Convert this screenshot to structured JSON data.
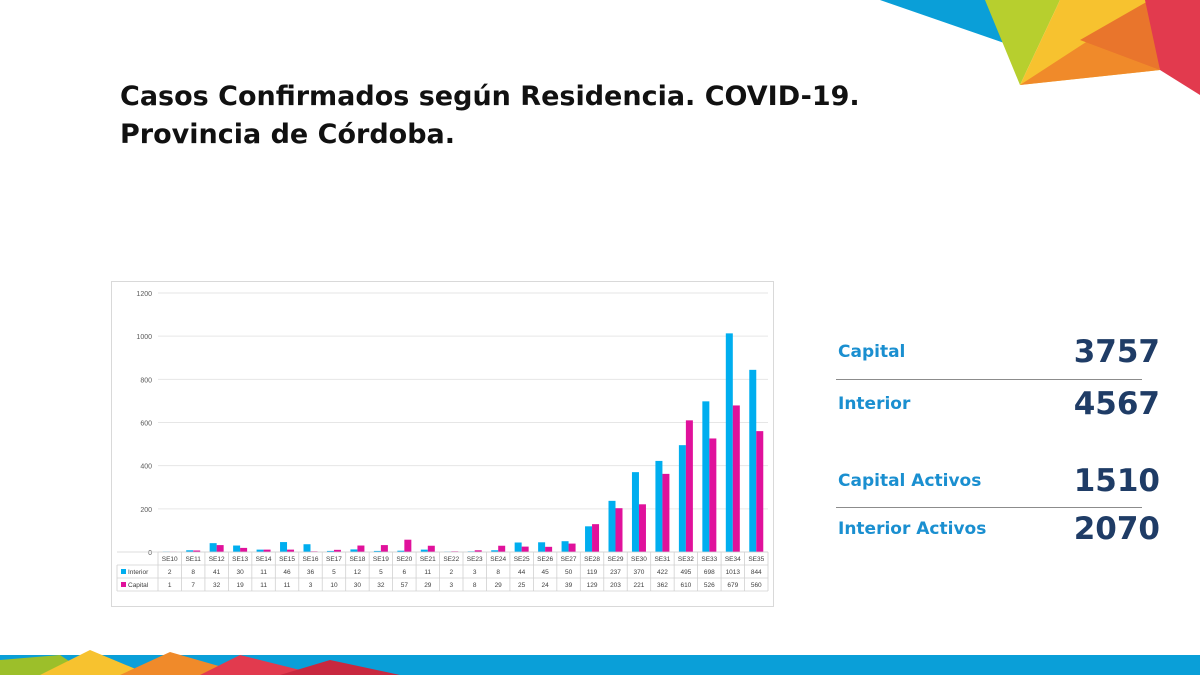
{
  "slide": {
    "title_line1": "Casos Confirmados según Residencia. COVID-19.",
    "title_line2": "Provincia de Córdoba."
  },
  "stats": [
    {
      "label": "Capital",
      "value": "3757"
    },
    {
      "label": "Interior",
      "value": "4567"
    },
    {
      "label": "Capital Activos",
      "value": "1510"
    },
    {
      "label": "Interior Activos",
      "value": "2070"
    }
  ],
  "colors": {
    "interior": "#00AEEF",
    "capital": "#E0119B",
    "stat_label": "#1A8FD0",
    "stat_value": "#1F3C66",
    "deco_blue": "#0A9FD8",
    "deco_orange": "#F39A2A",
    "deco_red": "#E23A4E",
    "deco_green": "#B7CF2E",
    "deco_yellow": "#F7C22F"
  },
  "chart_data": {
    "type": "bar",
    "categories": [
      "SE10",
      "SE11",
      "SE12",
      "SE13",
      "SE14",
      "SE15",
      "SE16",
      "SE17",
      "SE18",
      "SE19",
      "SE20",
      "SE21",
      "SE22",
      "SE23",
      "SE24",
      "SE25",
      "SE26",
      "SE27",
      "SE28",
      "SE29",
      "SE30",
      "SE31",
      "SE32",
      "SE33",
      "SE34",
      "SE35"
    ],
    "series": [
      {
        "name": "Interior",
        "values": [
          2,
          8,
          41,
          30,
          11,
          46,
          36,
          5,
          12,
          5,
          6,
          11,
          2,
          3,
          8,
          44,
          45,
          50,
          119,
          237,
          370,
          422,
          495,
          698,
          1013,
          844
        ]
      },
      {
        "name": "Capital",
        "values": [
          1,
          7,
          32,
          19,
          11,
          11,
          3,
          10,
          30,
          32,
          57,
          29,
          3,
          8,
          29,
          25,
          24,
          39,
          129,
          203,
          221,
          362,
          610,
          526,
          679,
          560
        ]
      }
    ],
    "yticks": [
      "0",
      "200",
      "400",
      "600",
      "800",
      "1000",
      "1200"
    ],
    "ylim": [
      0,
      1200
    ],
    "grid": true,
    "legend": "data-table"
  }
}
